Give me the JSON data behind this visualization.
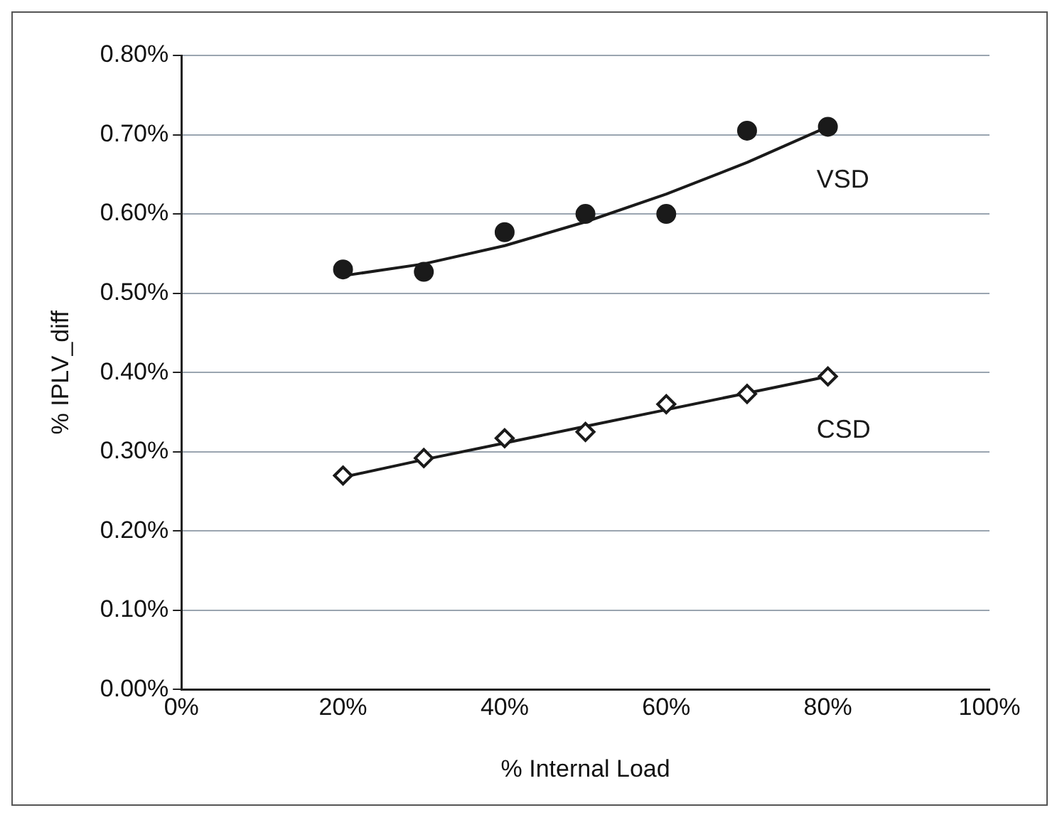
{
  "chart_data": {
    "type": "scatter",
    "xlabel": "% Internal Load",
    "ylabel": "% IPLV_diff",
    "xlim": [
      0,
      100
    ],
    "xticks": [
      {
        "value": 0,
        "label": "0%"
      },
      {
        "value": 20,
        "label": "20%"
      },
      {
        "value": 40,
        "label": "40%"
      },
      {
        "value": 60,
        "label": "60%"
      },
      {
        "value": 80,
        "label": "80%"
      },
      {
        "value": 100,
        "label": "100%"
      }
    ],
    "ylim": [
      0,
      0.8
    ],
    "yticks": [
      {
        "value": 0,
        "label": "0.00%"
      },
      {
        "value": 0.1,
        "label": "0.10%"
      },
      {
        "value": 0.2,
        "label": "0.20%"
      },
      {
        "value": 0.3,
        "label": "0.30%"
      },
      {
        "value": 0.4,
        "label": "0.40%"
      },
      {
        "value": 0.5,
        "label": "0.50%"
      },
      {
        "value": 0.6,
        "label": "0.60%"
      },
      {
        "value": 0.7,
        "label": "0.70%"
      },
      {
        "value": 0.8,
        "label": "0.80%"
      }
    ],
    "grid": "y",
    "legend": false,
    "series": [
      {
        "name": "VSD",
        "marker": "circle",
        "color": "#1a1a1a",
        "x": [
          20,
          30,
          40,
          50,
          60,
          70,
          80
        ],
        "values": [
          0.53,
          0.527,
          0.577,
          0.6,
          0.6,
          0.705,
          0.71
        ]
      },
      {
        "name": "CSD",
        "marker": "diamond",
        "color": "#1a1a1a",
        "x": [
          20,
          30,
          40,
          50,
          60,
          70,
          80
        ],
        "values": [
          0.27,
          0.292,
          0.317,
          0.325,
          0.36,
          0.373,
          0.395
        ]
      },
      {
        "type": "line",
        "marker": "none",
        "line_style": "solid",
        "color": "#1a1a1a",
        "x": [
          20,
          30,
          40,
          50,
          60,
          70,
          80
        ],
        "values": [
          0.522,
          0.537,
          0.56,
          0.59,
          0.625,
          0.665,
          0.71
        ]
      },
      {
        "type": "line",
        "marker": "none",
        "line_style": "solid",
        "color": "#1a1a1a",
        "x": [
          20,
          30,
          40,
          50,
          60,
          70,
          80
        ],
        "values": [
          0.268,
          0.29,
          0.311,
          0.332,
          0.353,
          0.374,
          0.395
        ]
      }
    ]
  }
}
